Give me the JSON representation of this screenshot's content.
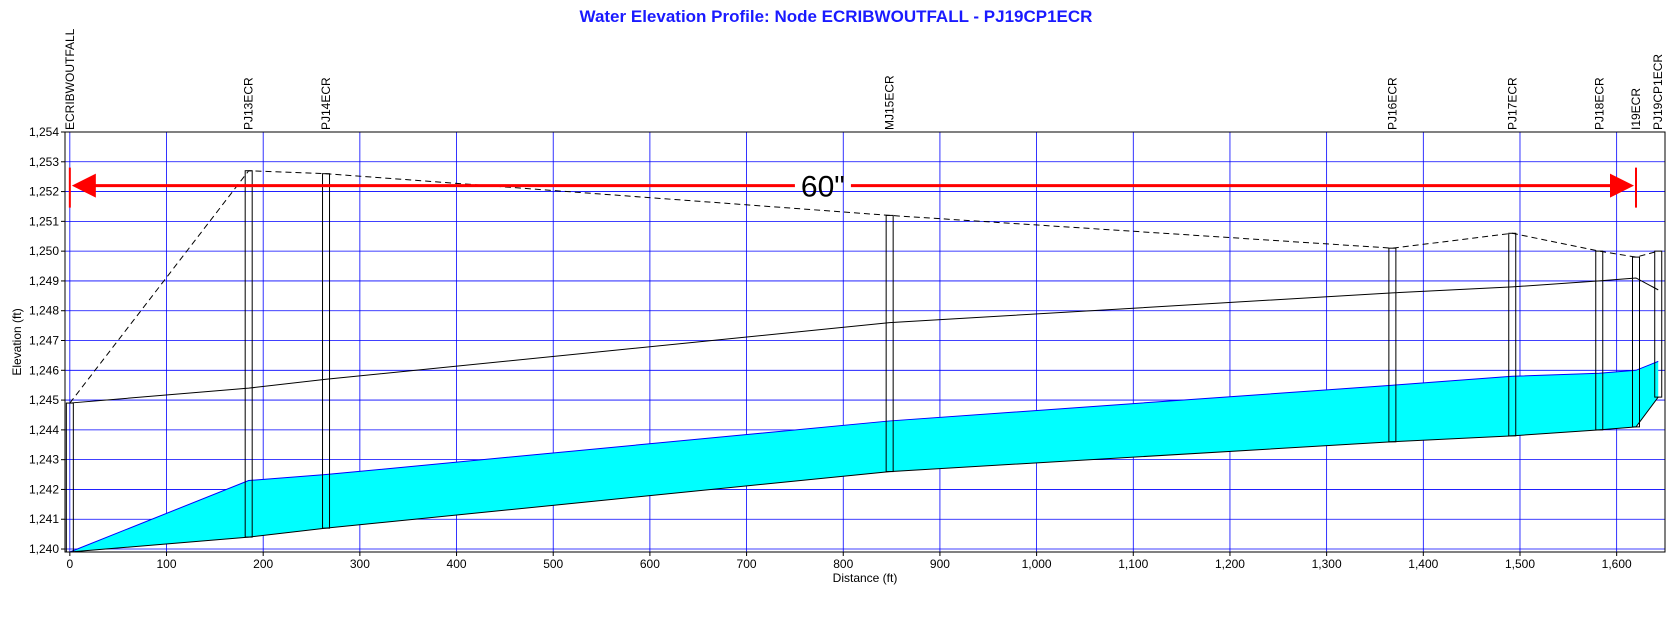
{
  "chart_data": {
    "type": "area",
    "title": "Water Elevation Profile:  Node ECRIBWOUTFALL - PJ19CP1ECR",
    "xlabel": "Distance (ft)",
    "ylabel": "Elevation (ft)",
    "xlim": [
      -5,
      1650
    ],
    "ylim": [
      1239.9,
      1254
    ],
    "x_ticks": [
      0,
      100,
      200,
      300,
      400,
      500,
      600,
      700,
      800,
      900,
      1000,
      1100,
      1200,
      1300,
      1400,
      1500,
      1600
    ],
    "x_tick_labels": [
      "0",
      "100",
      "200",
      "300",
      "400",
      "500",
      "600",
      "700",
      "800",
      "900",
      "1,000",
      "1,100",
      "1,200",
      "1,300",
      "1,400",
      "1,500",
      "1,600"
    ],
    "y_ticks": [
      1240,
      1241,
      1242,
      1243,
      1244,
      1245,
      1246,
      1247,
      1248,
      1249,
      1250,
      1251,
      1252,
      1253,
      1254
    ],
    "y_tick_labels": [
      "1,240",
      "1,241",
      "1,242",
      "1,243",
      "1,244",
      "1,245",
      "1,246",
      "1,247",
      "1,248",
      "1,249",
      "1,250",
      "1,251",
      "1,252",
      "1,253",
      "1,254"
    ],
    "grid": true,
    "nodes": [
      {
        "name": "ECRIBWOUTFALL",
        "x": 0,
        "invert": 1239.9,
        "rim": 1244.9,
        "hgl": 1239.9,
        "crown": 1244.9
      },
      {
        "name": "PJ13ECR",
        "x": 185,
        "invert": 1240.4,
        "rim": 1252.7,
        "hgl": 1242.3,
        "crown": 1245.4
      },
      {
        "name": "PJ14ECR",
        "x": 265,
        "invert": 1240.7,
        "rim": 1252.6,
        "hgl": 1242.5,
        "crown": 1245.7
      },
      {
        "name": "MJ15ECR",
        "x": 848,
        "invert": 1242.6,
        "rim": 1251.2,
        "hgl": 1244.3,
        "crown": 1247.6
      },
      {
        "name": "PJ16ECR",
        "x": 1368,
        "invert": 1243.6,
        "rim": 1250.1,
        "hgl": 1245.5,
        "crown": 1248.6
      },
      {
        "name": "PJ17ECR",
        "x": 1492,
        "invert": 1243.8,
        "rim": 1250.6,
        "hgl": 1245.8,
        "crown": 1248.8
      },
      {
        "name": "PJ18ECR",
        "x": 1582,
        "invert": 1244.0,
        "rim": 1250.0,
        "hgl": 1245.9,
        "crown": 1249.0
      },
      {
        "name": "I19ECR",
        "x": 1620,
        "invert": 1244.1,
        "rim": 1249.8,
        "hgl": 1246.0,
        "crown": 1249.1
      },
      {
        "name": "PJ19CP1ECR",
        "x": 1643,
        "invert": 1245.1,
        "rim": 1250.0,
        "hgl": 1246.3,
        "crown": 1248.7
      }
    ],
    "annotation": {
      "text": "60\"",
      "x_from": 0,
      "x_to": 1620,
      "y": 1252.2,
      "color": "#ff0000"
    },
    "colors": {
      "hgl_fill": "#00ffff",
      "hgl_line": "#0000ff",
      "grid": "#0000ff",
      "title": "#1a1aff",
      "arrow": "#ff0000"
    }
  }
}
